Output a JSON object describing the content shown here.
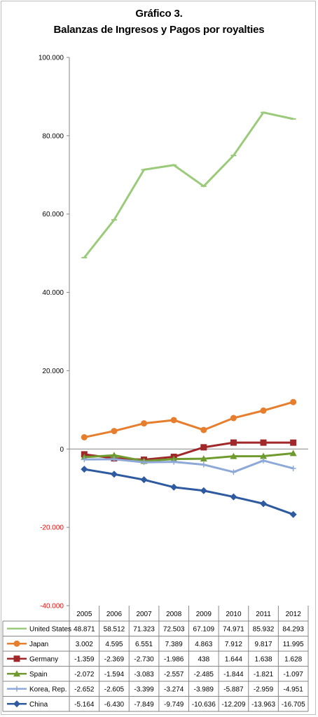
{
  "title_line1": "Gráfico 3.",
  "title_line2": "Balanzas de Ingresos y Pagos por royalties",
  "chart_data": {
    "type": "line",
    "title": "Gráfico 3. Balanzas de Ingresos y Pagos por royalties",
    "xlabel": "",
    "ylabel": "",
    "categories": [
      "2005",
      "2006",
      "2007",
      "2008",
      "2009",
      "2010",
      "2011",
      "2012"
    ],
    "ylim": [
      -40000,
      100000
    ],
    "y_ticks": [
      {
        "value": 100000,
        "label": "100.000",
        "color": "#000000"
      },
      {
        "value": 80000,
        "label": "80.000",
        "color": "#000000"
      },
      {
        "value": 60000,
        "label": "60.000",
        "color": "#000000"
      },
      {
        "value": 40000,
        "label": "40.000",
        "color": "#000000"
      },
      {
        "value": 20000,
        "label": "20.000",
        "color": "#000000"
      },
      {
        "value": 0,
        "label": "0",
        "color": "#000000"
      },
      {
        "value": -20000,
        "label": "-20.000",
        "color": "#ff0000"
      },
      {
        "value": -40000,
        "label": "-40.000",
        "color": "#ff0000"
      }
    ],
    "grid": false,
    "legend": "data-table",
    "series": [
      {
        "name": "United States",
        "color": "#9bcb7a",
        "marker": "dash",
        "values": [
          48871,
          58512,
          71323,
          72503,
          67109,
          74971,
          85932,
          84293
        ],
        "labels": [
          "48.871",
          "58.512",
          "71.323",
          "72.503",
          "67.109",
          "74.971",
          "85.932",
          "84.293"
        ]
      },
      {
        "name": "Japan",
        "color": "#e67e2e",
        "marker": "circle",
        "values": [
          3002,
          4595,
          6551,
          7389,
          4863,
          7912,
          9817,
          11995
        ],
        "labels": [
          "3.002",
          "4.595",
          "6.551",
          "7.389",
          "4.863",
          "7.912",
          "9.817",
          "11.995"
        ]
      },
      {
        "name": "Germany",
        "color": "#a0282a",
        "marker": "square",
        "values": [
          -1359,
          -2369,
          -2730,
          -1986,
          438,
          1644,
          1638,
          1628
        ],
        "labels": [
          "-1.359",
          "-2.369",
          "-2.730",
          "-1.986",
          "438",
          "1.644",
          "1.638",
          "1.628"
        ]
      },
      {
        "name": "Spain",
        "color": "#6e9a2e",
        "marker": "triangle",
        "values": [
          -2072,
          -1594,
          -3083,
          -2557,
          -2485,
          -1844,
          -1821,
          -1097
        ],
        "labels": [
          "-2.072",
          "-1.594",
          "-3.083",
          "-2.557",
          "-2.485",
          "-1.844",
          "-1.821",
          "-1.097"
        ]
      },
      {
        "name": "Korea, Rep.",
        "color": "#8ea9d8",
        "marker": "plus",
        "values": [
          -2652,
          -2605,
          -3399,
          -3274,
          -3989,
          -5887,
          -2959,
          -4951
        ],
        "labels": [
          "-2.652",
          "-2.605",
          "-3.399",
          "-3.274",
          "-3.989",
          "-5.887",
          "-2.959",
          "-4.951"
        ]
      },
      {
        "name": "China",
        "color": "#2e5aa0",
        "marker": "diamond",
        "values": [
          -5164,
          -6430,
          -7849,
          -9749,
          -10636,
          -12209,
          -13963,
          -16705
        ],
        "labels": [
          "-5.164",
          "-6.430",
          "-7.849",
          "-9.749",
          "-10.636",
          "-12.209",
          "-13.963",
          "-16.705"
        ]
      }
    ]
  }
}
